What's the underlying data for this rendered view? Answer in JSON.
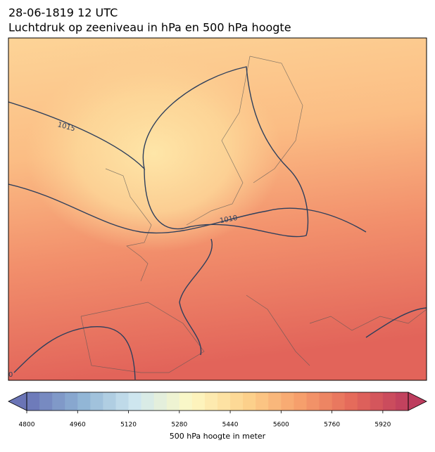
{
  "header": {
    "title": "28-06-1819 12 UTC",
    "subtitle": "Luchtdruk op zeeniveau in hPa en 500 hPa hoogte"
  },
  "map": {
    "contour_labels": [
      "1015",
      "1010",
      "0"
    ]
  },
  "colorbar": {
    "label": "500 hPa hoogte in meter",
    "range": [
      4800,
      6000
    ],
    "level_step": 40,
    "ticks": [
      4800,
      4960,
      5120,
      5280,
      5440,
      5600,
      5760,
      5920
    ],
    "colormap": [
      "#6a74b6",
      "#8fb3d5",
      "#cfe7ef",
      "#fdf8c4",
      "#fdd48e",
      "#f6a06c",
      "#e4685a",
      "#bd3d5e"
    ]
  }
}
